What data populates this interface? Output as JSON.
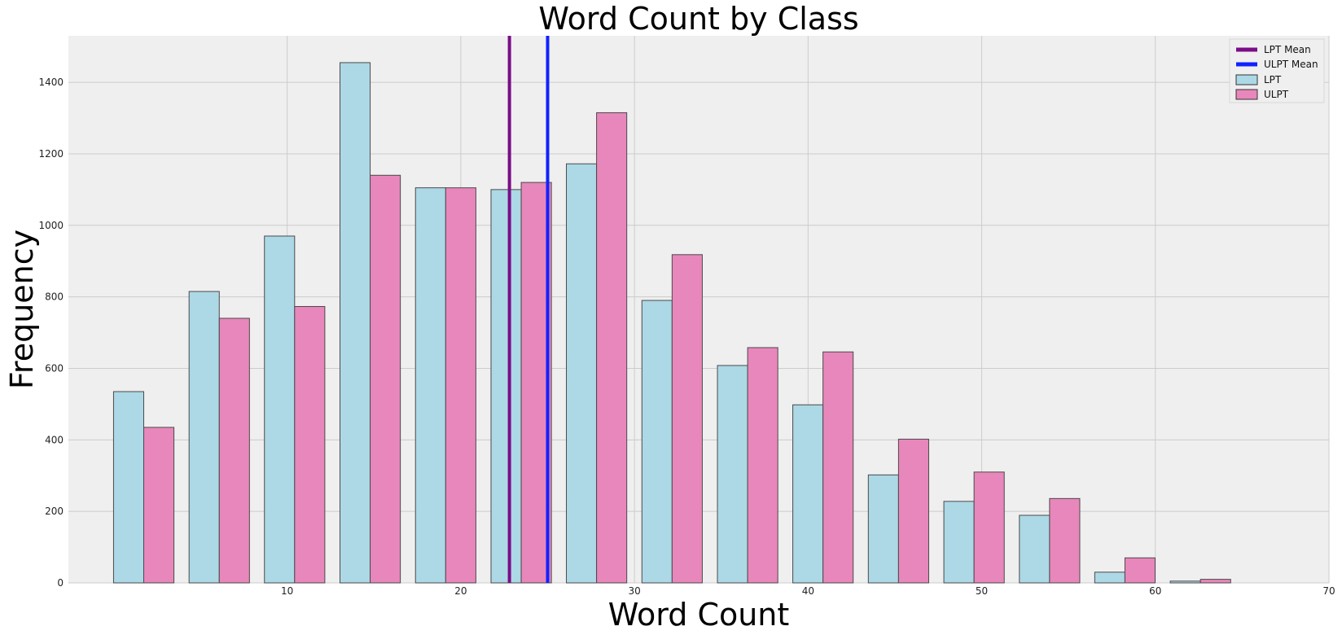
{
  "chart_data": {
    "type": "bar",
    "title": "Word Count by Class",
    "xlabel": "Word Count",
    "ylabel": "Frequency",
    "xlim": [
      -2.6,
      70
    ],
    "ylim": [
      0,
      1530
    ],
    "xticks": [
      10,
      20,
      30,
      40,
      50,
      60,
      70
    ],
    "yticks": [
      0,
      200,
      400,
      600,
      800,
      1000,
      1200,
      1400
    ],
    "grid": true,
    "legend_position": "top-right",
    "bin_width": 4.347,
    "bin_starts": [
      0,
      4.35,
      8.69,
      13.04,
      17.39,
      21.74,
      26.08,
      30.43,
      34.78,
      39.12,
      43.47,
      47.82,
      52.17,
      56.51,
      60.86
    ],
    "series": [
      {
        "name": "LPT",
        "color": "#add8e6",
        "values": [
          535,
          815,
          970,
          1455,
          1105,
          1100,
          1172,
          790,
          608,
          498,
          302,
          228,
          189,
          30,
          5
        ]
      },
      {
        "name": "ULPT",
        "color": "#e887bb",
        "values": [
          435,
          740,
          773,
          1140,
          1105,
          1120,
          1315,
          918,
          658,
          646,
          402,
          310,
          236,
          70,
          10
        ]
      }
    ],
    "mean_lines": [
      {
        "name": "LPT Mean",
        "x": 22.8,
        "color": "#7b0d87"
      },
      {
        "name": "ULPT Mean",
        "x": 25.0,
        "color": "#1022ff"
      }
    ]
  }
}
